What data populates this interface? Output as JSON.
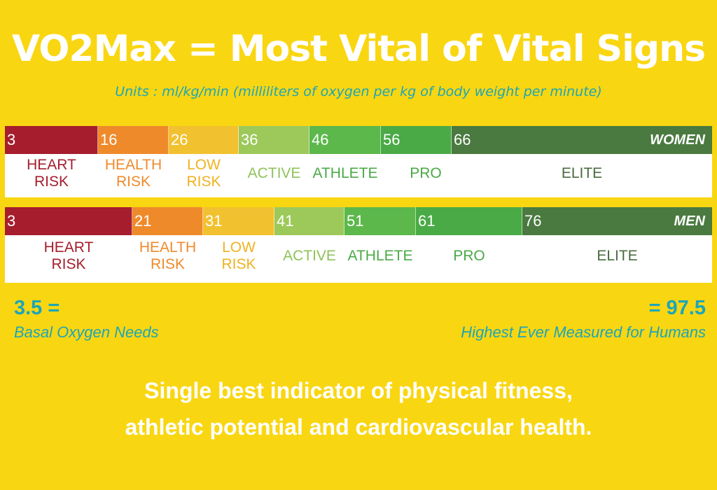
{
  "title": "VO2Max = Most Vital of Vital Signs",
  "subtitle": "Units : ml/kg/min (milliliters of oxygen per kg of body weight per minute)",
  "colors": {
    "background": "#f9d612",
    "heart_risk": "#a61d2d",
    "health_risk": "#ef8a2b",
    "low_risk": "#f2c12f",
    "active": "#9cc95a",
    "athlete": "#5cb84a",
    "pro": "#4aaa46",
    "elite": "#4a7a3f",
    "teal_text": "#1ba6b8"
  },
  "categories": {
    "heart_risk": [
      "HEART",
      "RISK"
    ],
    "health_risk": [
      "HEALTH",
      "RISK"
    ],
    "low_risk": [
      "LOW",
      "RISK"
    ],
    "active": "ACTIVE",
    "athlete": "ATHLETE",
    "pro": "PRO",
    "elite": "ELITE"
  },
  "women": {
    "label": "WOMEN",
    "thresholds": [
      "3",
      "16",
      "26",
      "36",
      "46",
      "56",
      "66"
    ]
  },
  "men": {
    "label": "MEN",
    "thresholds": [
      "3",
      "21",
      "31",
      "41",
      "51",
      "61",
      "76"
    ]
  },
  "basal": {
    "value": "3.5 =",
    "description": "Basal Oxygen Needs"
  },
  "highest": {
    "value": "= 97.5",
    "description": "Highest Ever Measured for Humans"
  },
  "tagline": {
    "line1": "Single best indicator of physical fitness,",
    "line2": "athletic potential and cardiovascular health."
  }
}
